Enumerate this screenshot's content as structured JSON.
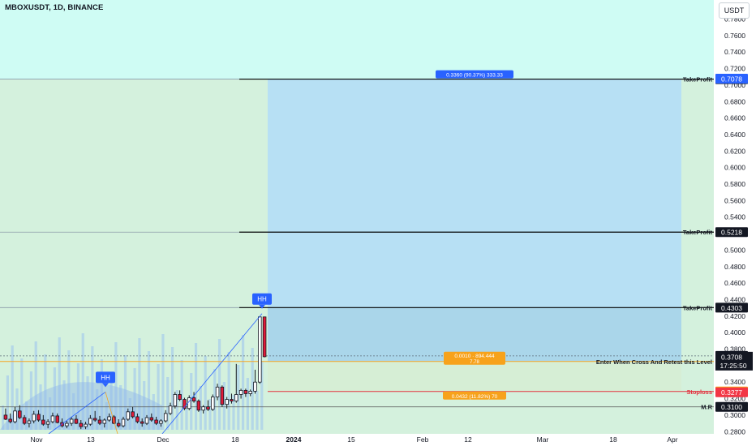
{
  "header": {
    "title": "MBOXUSDT, 1D, BINANCE",
    "currency": "USDT"
  },
  "colors": {
    "background": "#cffcf4",
    "profit_zone": "#b7e0f4",
    "loss_zone": "#d6eed5",
    "up_candle": "#ffffff",
    "down_candle": "#e01b38",
    "entry_line": "#f5a623",
    "stop_line": "#e2333f",
    "label_blue": "#2962ff",
    "label_orange": "#f7a21b",
    "label_red": "#f23645",
    "label_black": "#131722"
  },
  "chart_data": {
    "type": "candlestick",
    "y_axis_ticks": [
      "0.7800",
      "0.7600",
      "0.7400",
      "0.7200",
      "0.7000",
      "0.6800",
      "0.6600",
      "0.6400",
      "0.6200",
      "0.6000",
      "0.5800",
      "0.5600",
      "0.5400",
      "0.5200",
      "0.5000",
      "0.4800",
      "0.4600",
      "0.4400",
      "0.4200",
      "0.4000",
      "0.3800",
      "0.3600",
      "0.3400",
      "0.3200",
      "0.3000",
      "0.2800"
    ],
    "x_axis_ticks": [
      {
        "label": "Nov",
        "bold": false
      },
      {
        "label": "13",
        "bold": false
      },
      {
        "label": "Dec",
        "bold": false
      },
      {
        "label": "18",
        "bold": false
      },
      {
        "label": "2024",
        "bold": true
      },
      {
        "label": "15",
        "bold": false
      },
      {
        "label": "Feb",
        "bold": false
      },
      {
        "label": "12",
        "bold": false
      },
      {
        "label": "Mar",
        "bold": false
      },
      {
        "label": "18",
        "bold": false
      },
      {
        "label": "Apr",
        "bold": false
      }
    ],
    "candles": [
      {
        "o": 0.3,
        "h": 0.308,
        "l": 0.294,
        "c": 0.295
      },
      {
        "o": 0.295,
        "h": 0.302,
        "l": 0.29,
        "c": 0.292
      },
      {
        "o": 0.292,
        "h": 0.31,
        "l": 0.29,
        "c": 0.305
      },
      {
        "o": 0.305,
        "h": 0.312,
        "l": 0.295,
        "c": 0.297
      },
      {
        "o": 0.297,
        "h": 0.3,
        "l": 0.288,
        "c": 0.29
      },
      {
        "o": 0.29,
        "h": 0.296,
        "l": 0.285,
        "c": 0.293
      },
      {
        "o": 0.293,
        "h": 0.305,
        "l": 0.29,
        "c": 0.301
      },
      {
        "o": 0.301,
        "h": 0.306,
        "l": 0.292,
        "c": 0.294
      },
      {
        "o": 0.294,
        "h": 0.3,
        "l": 0.287,
        "c": 0.289
      },
      {
        "o": 0.289,
        "h": 0.295,
        "l": 0.284,
        "c": 0.292
      },
      {
        "o": 0.292,
        "h": 0.303,
        "l": 0.29,
        "c": 0.299
      },
      {
        "o": 0.299,
        "h": 0.302,
        "l": 0.29,
        "c": 0.291
      },
      {
        "o": 0.291,
        "h": 0.296,
        "l": 0.285,
        "c": 0.287
      },
      {
        "o": 0.287,
        "h": 0.293,
        "l": 0.284,
        "c": 0.29
      },
      {
        "o": 0.29,
        "h": 0.298,
        "l": 0.287,
        "c": 0.295
      },
      {
        "o": 0.295,
        "h": 0.3,
        "l": 0.289,
        "c": 0.29
      },
      {
        "o": 0.29,
        "h": 0.294,
        "l": 0.283,
        "c": 0.286
      },
      {
        "o": 0.286,
        "h": 0.292,
        "l": 0.283,
        "c": 0.289
      },
      {
        "o": 0.289,
        "h": 0.3,
        "l": 0.287,
        "c": 0.296
      },
      {
        "o": 0.296,
        "h": 0.305,
        "l": 0.292,
        "c": 0.294
      },
      {
        "o": 0.294,
        "h": 0.299,
        "l": 0.288,
        "c": 0.29
      },
      {
        "o": 0.29,
        "h": 0.296,
        "l": 0.285,
        "c": 0.294
      },
      {
        "o": 0.294,
        "h": 0.302,
        "l": 0.292,
        "c": 0.298
      },
      {
        "o": 0.298,
        "h": 0.3,
        "l": 0.289,
        "c": 0.29
      },
      {
        "o": 0.29,
        "h": 0.295,
        "l": 0.285,
        "c": 0.287
      },
      {
        "o": 0.287,
        "h": 0.298,
        "l": 0.285,
        "c": 0.295
      },
      {
        "o": 0.295,
        "h": 0.308,
        "l": 0.293,
        "c": 0.304
      },
      {
        "o": 0.304,
        "h": 0.31,
        "l": 0.296,
        "c": 0.298
      },
      {
        "o": 0.298,
        "h": 0.302,
        "l": 0.29,
        "c": 0.292
      },
      {
        "o": 0.292,
        "h": 0.296,
        "l": 0.286,
        "c": 0.29
      },
      {
        "o": 0.29,
        "h": 0.3,
        "l": 0.288,
        "c": 0.297
      },
      {
        "o": 0.297,
        "h": 0.302,
        "l": 0.292,
        "c": 0.294
      },
      {
        "o": 0.294,
        "h": 0.298,
        "l": 0.288,
        "c": 0.29
      },
      {
        "o": 0.29,
        "h": 0.295,
        "l": 0.286,
        "c": 0.293
      },
      {
        "o": 0.293,
        "h": 0.306,
        "l": 0.291,
        "c": 0.302
      },
      {
        "o": 0.302,
        "h": 0.315,
        "l": 0.3,
        "c": 0.311
      },
      {
        "o": 0.311,
        "h": 0.328,
        "l": 0.308,
        "c": 0.325
      },
      {
        "o": 0.325,
        "h": 0.33,
        "l": 0.317,
        "c": 0.319
      },
      {
        "o": 0.319,
        "h": 0.321,
        "l": 0.306,
        "c": 0.308
      },
      {
        "o": 0.308,
        "h": 0.324,
        "l": 0.306,
        "c": 0.321
      },
      {
        "o": 0.321,
        "h": 0.328,
        "l": 0.315,
        "c": 0.317
      },
      {
        "o": 0.317,
        "h": 0.319,
        "l": 0.304,
        "c": 0.306
      },
      {
        "o": 0.306,
        "h": 0.312,
        "l": 0.302,
        "c": 0.31
      },
      {
        "o": 0.31,
        "h": 0.318,
        "l": 0.305,
        "c": 0.307
      },
      {
        "o": 0.307,
        "h": 0.325,
        "l": 0.305,
        "c": 0.322
      },
      {
        "o": 0.322,
        "h": 0.338,
        "l": 0.318,
        "c": 0.334
      },
      {
        "o": 0.334,
        "h": 0.336,
        "l": 0.31,
        "c": 0.313
      },
      {
        "o": 0.313,
        "h": 0.322,
        "l": 0.308,
        "c": 0.319
      },
      {
        "o": 0.319,
        "h": 0.326,
        "l": 0.314,
        "c": 0.317
      },
      {
        "o": 0.317,
        "h": 0.362,
        "l": 0.315,
        "c": 0.325
      },
      {
        "o": 0.325,
        "h": 0.332,
        "l": 0.32,
        "c": 0.33
      },
      {
        "o": 0.33,
        "h": 0.332,
        "l": 0.322,
        "c": 0.326
      },
      {
        "o": 0.326,
        "h": 0.331,
        "l": 0.323,
        "c": 0.329
      },
      {
        "o": 0.329,
        "h": 0.355,
        "l": 0.326,
        "c": 0.34
      },
      {
        "o": 0.34,
        "h": 0.419,
        "l": 0.338,
        "c": 0.419
      },
      {
        "o": 0.419,
        "h": 0.419,
        "l": 0.37,
        "c": 0.3708
      }
    ],
    "levels": [
      {
        "role": "TP",
        "name": "TakeProfit",
        "value": 0.7072,
        "price_label": "0.7072",
        "color": "#131722"
      },
      {
        "role": "TP",
        "name": "TakeProfit",
        "value": 0.5218,
        "price_label": "0.5218",
        "color": "#131722"
      },
      {
        "role": "TP",
        "name": "TakeProfit",
        "value": 0.4303,
        "price_label": "0.4303",
        "color": "#131722"
      },
      {
        "role": "ENTRY",
        "name": "Enter When Cross And Retest this Level",
        "value": 0.365,
        "price_label": "0.3650",
        "color": "#f7a21b"
      },
      {
        "role": "SL",
        "name": "Stoploss",
        "value": 0.3286,
        "price_label": "0.3286",
        "color": "#f23645"
      },
      {
        "role": "MR",
        "name": "M.R",
        "value": 0.31,
        "price_label": "0.3100",
        "color": "#131722"
      }
    ],
    "axis_price_tags": [
      {
        "value": 0.7078,
        "label": "0.7078",
        "color": "#2962ff"
      },
      {
        "value": 0.3718,
        "label": "0.3718",
        "color": "#131722"
      },
      {
        "value": 0.3277,
        "label": "0.3277",
        "color": "#f23645"
      }
    ],
    "last_price": {
      "value": 0.3708,
      "label": "0.3708",
      "countdown": "17:25:50"
    },
    "position_tool": {
      "target_label": "0.3360 (90.37%) 333.33",
      "stop_label": "0.0432 (11.82%) 70",
      "entry_label": "0.0010 · 894.444",
      "entry_sub": "7.78"
    },
    "markers": [
      {
        "label": "HH",
        "value": 0.328
      },
      {
        "label": "HH",
        "value": 0.423
      }
    ]
  }
}
